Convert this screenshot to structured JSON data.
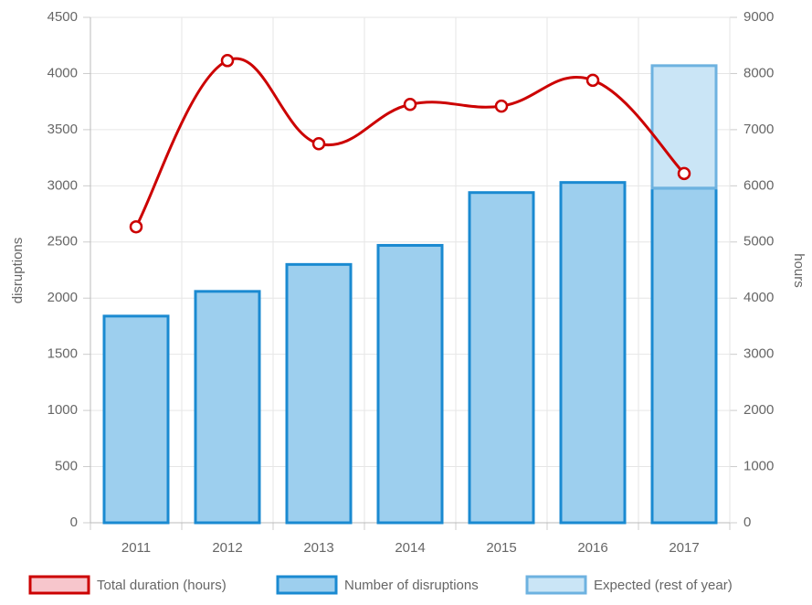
{
  "chart_data": {
    "type": "bar",
    "categories": [
      "2011",
      "2012",
      "2013",
      "2014",
      "2015",
      "2016",
      "2017"
    ],
    "series": [
      {
        "name": "Total duration (hours)",
        "type": "line",
        "axis": "y2",
        "color": "#cc0000",
        "values": [
          5270,
          8230,
          6750,
          7450,
          7420,
          7880,
          6220
        ]
      },
      {
        "name": "Number of disruptions",
        "type": "bar",
        "color": "#9dcfee",
        "border": "#1a8ad1",
        "values": [
          1840,
          2060,
          2300,
          2470,
          2940,
          3030,
          2980
        ]
      },
      {
        "name": "Expected (rest of year)",
        "type": "bar",
        "color": "#cae5f6",
        "border": "#6db2e0",
        "values": [
          null,
          null,
          null,
          null,
          null,
          null,
          1090
        ]
      }
    ],
    "ylabel": "disruptions",
    "y2label": "hours",
    "ylim": [
      0,
      4500
    ],
    "yticks": [
      0,
      500,
      1000,
      1500,
      2000,
      2500,
      3000,
      3500,
      4000,
      4500
    ],
    "y2lim": [
      0,
      9000
    ],
    "y2ticks": [
      0,
      1000,
      2000,
      3000,
      4000,
      5000,
      6000,
      7000,
      8000,
      9000
    ],
    "grid": true,
    "legend": "bottom"
  }
}
